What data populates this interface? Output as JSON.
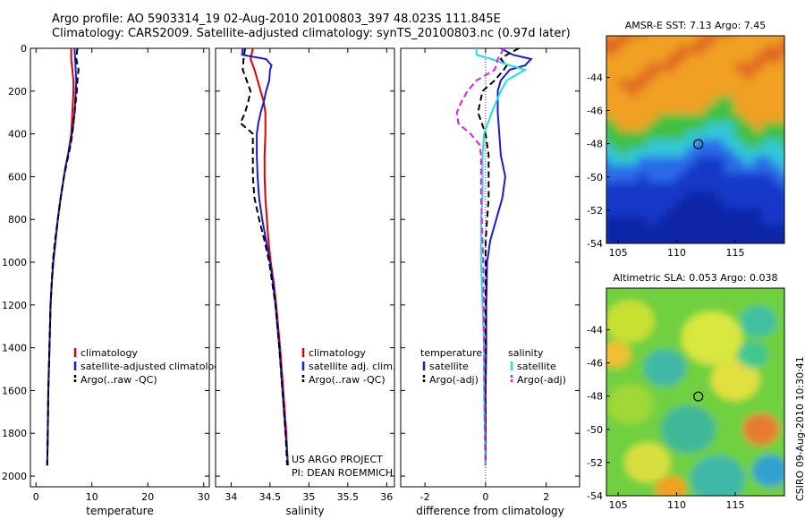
{
  "header": {
    "line1": "Argo profile: AO 5903314_19 02-Aug-2010 20100803_397 48.023S 111.845E",
    "line2": "Climatology: CARS2009. Satellite-adjusted climatology: synTS_20100803.nc (0.97d later)"
  },
  "credit": "CSIRO 09-Aug-2010 10:30:41",
  "colors": {
    "climatology": "#e00000",
    "satellite": "#1a1ad8",
    "argo": "#000000",
    "salinity_satellite": "#20e0e0",
    "salinity_argo": "#e020e0"
  },
  "chart_data": [
    {
      "type": "line",
      "xlabel": "temperature",
      "ylabel": "",
      "xlim": [
        -1,
        31
      ],
      "ylim": [
        2050,
        0
      ],
      "xticks": [
        0,
        10,
        20,
        30
      ],
      "yticks": [
        0,
        200,
        400,
        600,
        800,
        1000,
        1200,
        1400,
        1600,
        1800,
        2000
      ],
      "legend": {
        "placement": "bottom-right",
        "entries": [
          "climatology",
          "satellite-adjusted climatolog",
          "Argo(..raw -QC)"
        ]
      },
      "series": [
        {
          "name": "climatology",
          "color": "#e00000",
          "dash": "",
          "depth": [
            0,
            50,
            100,
            150,
            200,
            250,
            300,
            350,
            400,
            450,
            500,
            550,
            600,
            700,
            800,
            900,
            1000,
            1100,
            1200,
            1400,
            1600,
            1800,
            1950
          ],
          "values": [
            6.3,
            6.3,
            6.5,
            6.7,
            6.7,
            6.6,
            6.5,
            6.4,
            6.3,
            6.0,
            5.7,
            5.3,
            5.0,
            4.4,
            3.9,
            3.5,
            3.1,
            2.8,
            2.6,
            2.4,
            2.2,
            2.1,
            2.0
          ]
        },
        {
          "name": "satellite-adjusted climatolog",
          "color": "#1a1ad8",
          "dash": "",
          "depth": [
            0,
            50,
            100,
            150,
            200,
            250,
            300,
            350,
            400,
            450,
            500,
            550,
            600,
            700,
            800,
            900,
            1000,
            1100,
            1200,
            1400,
            1600,
            1800,
            1950
          ],
          "values": [
            6.9,
            7.0,
            7.1,
            7.2,
            7.1,
            7.0,
            6.9,
            6.7,
            6.4,
            6.1,
            5.7,
            5.3,
            5.0,
            4.4,
            3.9,
            3.5,
            3.1,
            2.8,
            2.6,
            2.4,
            2.2,
            2.1,
            2.0
          ]
        },
        {
          "name": "Argo(..raw -QC)",
          "color": "#000000",
          "dash": "7,4",
          "depth": [
            0,
            50,
            100,
            150,
            200,
            250,
            300,
            350,
            400,
            450,
            500,
            550,
            600,
            700,
            800,
            900,
            1000,
            1100,
            1200,
            1400,
            1600,
            1800,
            1950
          ],
          "values": [
            7.4,
            7.2,
            7.6,
            7.4,
            7.3,
            7.1,
            6.9,
            6.7,
            6.5,
            6.2,
            5.8,
            5.4,
            5.0,
            4.4,
            3.9,
            3.4,
            3.0,
            2.8,
            2.6,
            2.4,
            2.2,
            2.1,
            2.0
          ]
        }
      ]
    },
    {
      "type": "line",
      "xlabel": "salinity",
      "ylabel": "",
      "xlim": [
        33.8,
        36.1
      ],
      "ylim": [
        2050,
        0
      ],
      "xticks": [
        34,
        34.5,
        35,
        35.5,
        36
      ],
      "yticks": [
        0,
        200,
        400,
        600,
        800,
        1000,
        1200,
        1400,
        1600,
        1800,
        2000
      ],
      "legend": {
        "placement": "bottom-right",
        "entries": [
          "climatology",
          "satellite adj. clim.",
          "Argo(..raw -QC)"
        ]
      },
      "annotation": [
        "US ARGO PROJECT",
        "PI: DEAN ROEMMICH"
      ],
      "series": [
        {
          "name": "climatology",
          "color": "#e00000",
          "dash": "",
          "depth": [
            0,
            50,
            100,
            150,
            200,
            250,
            300,
            350,
            400,
            500,
            600,
            700,
            800,
            900,
            1000,
            1100,
            1200,
            1400,
            1600,
            1800,
            1950
          ],
          "values": [
            34.28,
            34.25,
            34.3,
            34.34,
            34.38,
            34.42,
            34.44,
            34.44,
            34.44,
            34.43,
            34.43,
            34.44,
            34.46,
            34.48,
            34.51,
            34.55,
            34.58,
            34.63,
            34.67,
            34.71,
            34.73
          ]
        },
        {
          "name": "satellite adj. clim.",
          "color": "#1a1ad8",
          "dash": "",
          "depth": [
            0,
            30,
            50,
            80,
            100,
            150,
            200,
            250,
            300,
            350,
            400,
            500,
            600,
            700,
            800,
            900,
            1000,
            1100,
            1200,
            1400,
            1600,
            1800,
            1950
          ],
          "values": [
            34.15,
            34.14,
            34.45,
            34.52,
            34.5,
            34.49,
            34.45,
            34.42,
            34.38,
            34.35,
            34.33,
            34.33,
            34.34,
            34.36,
            34.4,
            34.45,
            34.5,
            34.54,
            34.57,
            34.62,
            34.66,
            34.7,
            34.73
          ]
        },
        {
          "name": "Argo(..raw -QC)",
          "color": "#000000",
          "dash": "7,4",
          "depth": [
            0,
            50,
            100,
            150,
            200,
            250,
            300,
            350,
            380,
            400,
            500,
            600,
            700,
            800,
            900,
            1000,
            1100,
            1200,
            1400,
            1600,
            1800,
            1950
          ],
          "values": [
            34.18,
            34.16,
            34.15,
            34.2,
            34.25,
            34.22,
            34.18,
            34.12,
            34.22,
            34.28,
            34.28,
            34.28,
            34.3,
            34.36,
            34.43,
            34.49,
            34.53,
            34.57,
            34.62,
            34.66,
            34.7,
            34.72
          ]
        }
      ]
    },
    {
      "type": "line",
      "xlabel": "difference from climatology",
      "ylabel": "",
      "xlim": [
        -2.8,
        3.1
      ],
      "ylim": [
        2050,
        0
      ],
      "xticks": [
        -2,
        0,
        2
      ],
      "yticks": [
        0,
        200,
        400,
        600,
        800,
        1000,
        1200,
        1400,
        1600,
        1800,
        2000
      ],
      "legend": {
        "placement": "bottom-right",
        "headers": [
          "temperature",
          "salinity"
        ],
        "entries": [
          "satellite",
          "Argo(-adj)",
          "satellite",
          "Argo(-adj)"
        ]
      },
      "series": [
        {
          "name": "satellite",
          "group": "temperature",
          "color": "#1a1ad8",
          "dash": "",
          "depth": [
            0,
            30,
            50,
            80,
            100,
            150,
            200,
            300,
            400,
            500,
            600,
            700,
            800,
            900,
            1000,
            1200,
            1400,
            1600,
            1800,
            1950
          ],
          "values": [
            0.5,
            0.9,
            1.5,
            1.3,
            0.8,
            0.5,
            0.4,
            0.4,
            0.45,
            0.5,
            0.65,
            0.55,
            0.35,
            0.15,
            0.05,
            0.02,
            0.02,
            0.0,
            0.0,
            0.0
          ]
        },
        {
          "name": "Argo(-adj)",
          "group": "temperature",
          "color": "#000000",
          "dash": "7,4",
          "depth": [
            0,
            30,
            50,
            80,
            100,
            150,
            200,
            300,
            400,
            500,
            600,
            700,
            800,
            900,
            1000,
            1200,
            1400,
            1600,
            1800,
            1950
          ],
          "values": [
            1.1,
            0.7,
            0.5,
            0.7,
            0.6,
            0.3,
            -0.1,
            -0.25,
            0.0,
            0.1,
            0.1,
            0.1,
            0.05,
            0.0,
            0.0,
            0.0,
            0.0,
            0.0,
            0.0,
            0.0
          ]
        },
        {
          "name": "satellite",
          "group": "salinity",
          "color": "#20e0e0",
          "dash": "",
          "depth": [
            0,
            30,
            50,
            80,
            100,
            150,
            200,
            300,
            400,
            500,
            600,
            700,
            800,
            900,
            1000,
            1200,
            1400,
            1600,
            1800,
            1950
          ],
          "values": [
            -0.3,
            -0.3,
            0.2,
            0.8,
            1.3,
            0.7,
            0.5,
            0.2,
            -0.05,
            -0.1,
            -0.1,
            -0.1,
            -0.15,
            -0.15,
            -0.15,
            -0.1,
            -0.05,
            -0.05,
            -0.03,
            0.0
          ]
        },
        {
          "name": "Argo(-adj)",
          "group": "salinity",
          "color": "#e020e0",
          "dash": "7,4",
          "depth": [
            0,
            50,
            100,
            150,
            200,
            250,
            300,
            350,
            400,
            450,
            500,
            600,
            700,
            800,
            900,
            1000,
            1200,
            1400,
            1600,
            1800,
            1950
          ],
          "values": [
            0.6,
            0.4,
            0.3,
            -0.3,
            -0.6,
            -0.8,
            -0.95,
            -0.9,
            -0.5,
            -0.2,
            -0.15,
            -0.15,
            -0.15,
            -0.12,
            -0.1,
            -0.08,
            -0.06,
            -0.05,
            -0.04,
            -0.02,
            -0.01
          ]
        }
      ]
    },
    {
      "type": "heatmap",
      "title": "AMSR-E SST: 7.13 Argo: 7.45",
      "xlim": [
        104,
        119.2
      ],
      "ylim": [
        -54,
        -41.5
      ],
      "xticks": [
        105,
        110,
        115
      ],
      "yticks": [
        -44,
        -46,
        -48,
        -50,
        -52,
        -54
      ],
      "marker": {
        "lon": 111.845,
        "lat": -48.023
      }
    },
    {
      "type": "heatmap",
      "title": "Altimetric SLA: 0.053 Argo: 0.038",
      "xlim": [
        104,
        119.2
      ],
      "ylim": [
        -54,
        -41.5
      ],
      "xticks": [
        105,
        110,
        115
      ],
      "yticks": [
        -44,
        -46,
        -48,
        -50,
        -52,
        -54
      ],
      "marker": {
        "lon": 111.845,
        "lat": -48.023
      }
    }
  ]
}
